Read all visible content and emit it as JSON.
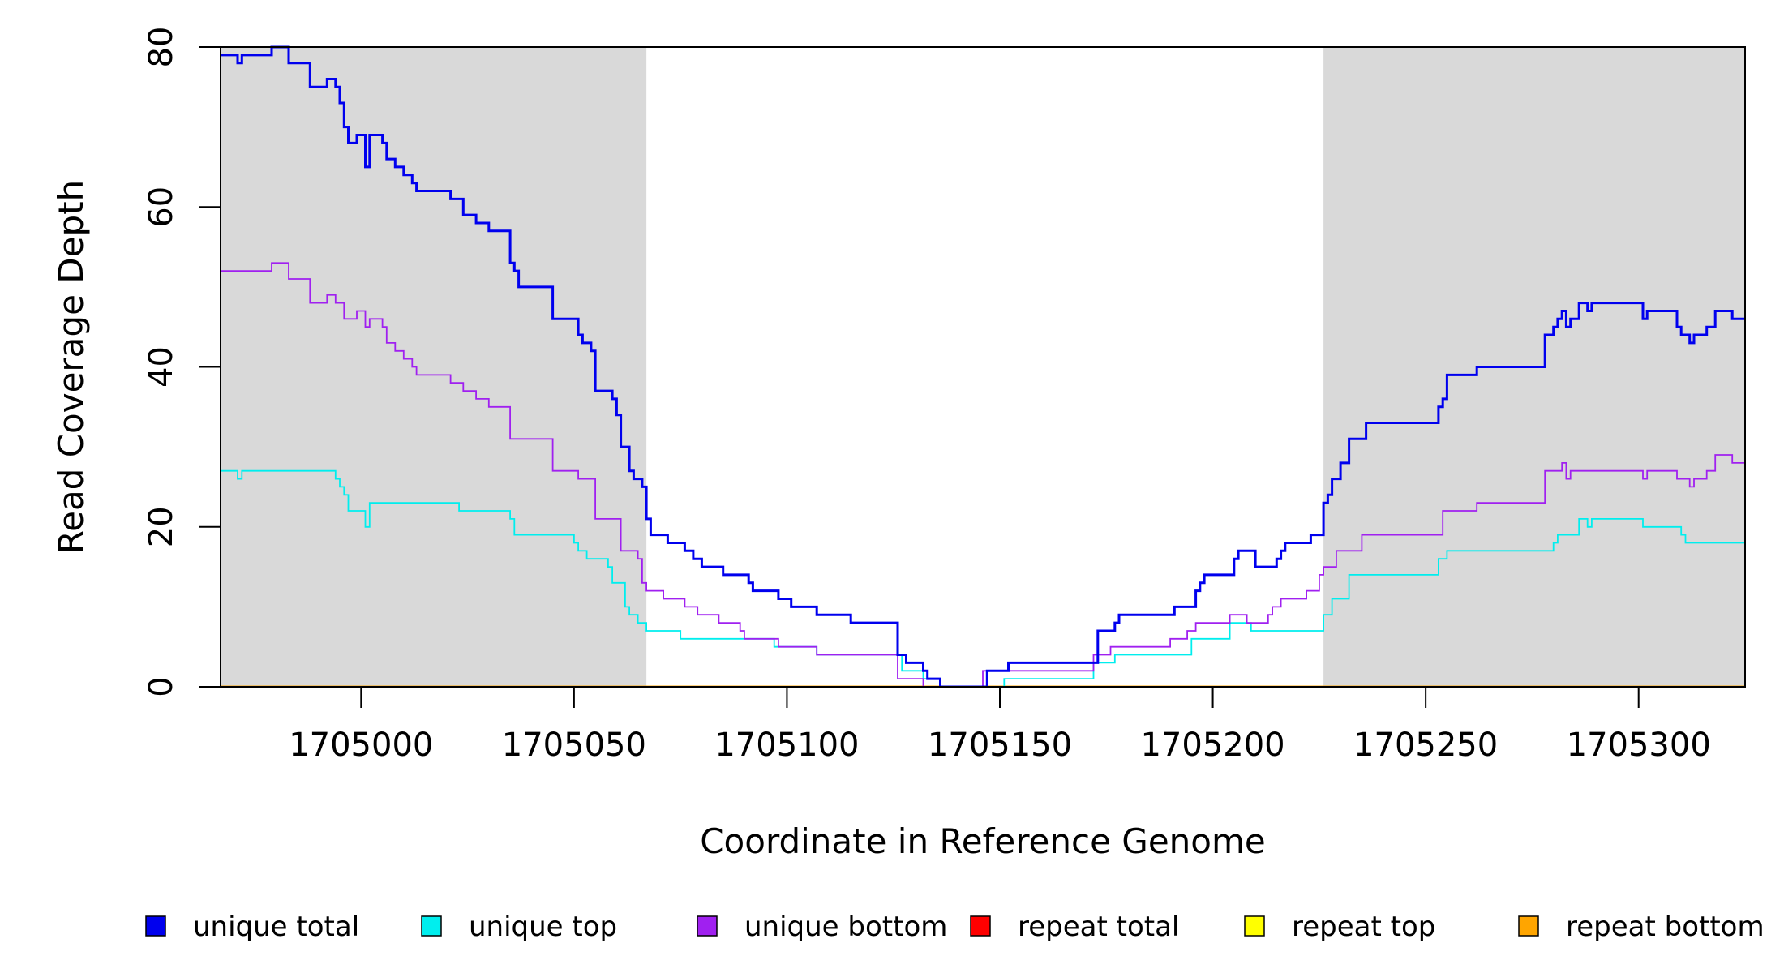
{
  "chart_data": {
    "type": "line",
    "title": "",
    "xlabel": "Coordinate in Reference Genome",
    "ylabel": "Read Coverage Depth",
    "xlim": [
      1704967,
      1705325
    ],
    "ylim": [
      0,
      80
    ],
    "x_ticks": [
      {
        "value": 1705000,
        "label": "1705000"
      },
      {
        "value": 1705050,
        "label": "1705050"
      },
      {
        "value": 1705100,
        "label": "1705100"
      },
      {
        "value": 1705150,
        "label": "1705150"
      },
      {
        "value": 1705200,
        "label": "1705200"
      },
      {
        "value": 1705250,
        "label": "1705250"
      },
      {
        "value": 1705300,
        "label": "1705300"
      }
    ],
    "y_ticks": [
      {
        "value": 0,
        "label": "0"
      },
      {
        "value": 20,
        "label": "20"
      },
      {
        "value": 40,
        "label": "40"
      },
      {
        "value": 60,
        "label": "60"
      },
      {
        "value": 80,
        "label": "80"
      }
    ],
    "shaded_regions": [
      {
        "x0": 1704967,
        "x1": 1705067,
        "color": "#d9d9d9"
      },
      {
        "x0": 1705226,
        "x1": 1705325,
        "color": "#d9d9d9"
      }
    ],
    "legend_position": "bottom",
    "series": [
      {
        "name": "unique total",
        "color": "#0000ee",
        "step": true,
        "points": [
          [
            1704967,
            79
          ],
          [
            1704971,
            78
          ],
          [
            1704972,
            79
          ],
          [
            1704979,
            80
          ],
          [
            1704983,
            78
          ],
          [
            1704988,
            75
          ],
          [
            1704992,
            76
          ],
          [
            1704994,
            75
          ],
          [
            1704995,
            73
          ],
          [
            1704996,
            70
          ],
          [
            1704997,
            68
          ],
          [
            1704999,
            69
          ],
          [
            1705001,
            65
          ],
          [
            1705002,
            69
          ],
          [
            1705005,
            68
          ],
          [
            1705006,
            66
          ],
          [
            1705008,
            65
          ],
          [
            1705010,
            64
          ],
          [
            1705012,
            63
          ],
          [
            1705013,
            62
          ],
          [
            1705021,
            61
          ],
          [
            1705024,
            59
          ],
          [
            1705027,
            58
          ],
          [
            1705030,
            57
          ],
          [
            1705035,
            53
          ],
          [
            1705036,
            52
          ],
          [
            1705037,
            50
          ],
          [
            1705045,
            46
          ],
          [
            1705051,
            44
          ],
          [
            1705052,
            43
          ],
          [
            1705054,
            42
          ],
          [
            1705055,
            37
          ],
          [
            1705059,
            36
          ],
          [
            1705060,
            34
          ],
          [
            1705061,
            30
          ],
          [
            1705063,
            27
          ],
          [
            1705064,
            26
          ],
          [
            1705066,
            25
          ],
          [
            1705067,
            21
          ],
          [
            1705068,
            19
          ],
          [
            1705072,
            18
          ],
          [
            1705076,
            17
          ],
          [
            1705078,
            16
          ],
          [
            1705080,
            15
          ],
          [
            1705085,
            14
          ],
          [
            1705091,
            13
          ],
          [
            1705092,
            12
          ],
          [
            1705098,
            11
          ],
          [
            1705101,
            10
          ],
          [
            1705107,
            9
          ],
          [
            1705115,
            8
          ],
          [
            1705126,
            4
          ],
          [
            1705128,
            3
          ],
          [
            1705132,
            2
          ],
          [
            1705133,
            1
          ],
          [
            1705136,
            0
          ],
          [
            1705147,
            2
          ],
          [
            1705152,
            3
          ],
          [
            1705173,
            7
          ],
          [
            1705177,
            8
          ],
          [
            1705178,
            9
          ],
          [
            1705191,
            10
          ],
          [
            1705196,
            12
          ],
          [
            1705197,
            13
          ],
          [
            1705198,
            14
          ],
          [
            1705205,
            16
          ],
          [
            1705206,
            17
          ],
          [
            1705210,
            15
          ],
          [
            1705215,
            16
          ],
          [
            1705216,
            17
          ],
          [
            1705217,
            18
          ],
          [
            1705223,
            19
          ],
          [
            1705226,
            23
          ],
          [
            1705227,
            24
          ],
          [
            1705228,
            26
          ],
          [
            1705230,
            28
          ],
          [
            1705232,
            31
          ],
          [
            1705236,
            33
          ],
          [
            1705253,
            35
          ],
          [
            1705254,
            36
          ],
          [
            1705255,
            39
          ],
          [
            1705262,
            40
          ],
          [
            1705278,
            44
          ],
          [
            1705280,
            45
          ],
          [
            1705281,
            46
          ],
          [
            1705282,
            47
          ],
          [
            1705283,
            45
          ],
          [
            1705284,
            46
          ],
          [
            1705286,
            48
          ],
          [
            1705288,
            47
          ],
          [
            1705289,
            48
          ],
          [
            1705301,
            46
          ],
          [
            1705302,
            47
          ],
          [
            1705309,
            45
          ],
          [
            1705310,
            44
          ],
          [
            1705312,
            43
          ],
          [
            1705313,
            44
          ],
          [
            1705316,
            45
          ],
          [
            1705318,
            47
          ],
          [
            1705322,
            46
          ],
          [
            1705325,
            46
          ]
        ]
      },
      {
        "name": "unique top",
        "color": "#00eeee",
        "step": true,
        "points": [
          [
            1704967,
            27
          ],
          [
            1704971,
            26
          ],
          [
            1704972,
            27
          ],
          [
            1704994,
            26
          ],
          [
            1704995,
            25
          ],
          [
            1704996,
            24
          ],
          [
            1704997,
            22
          ],
          [
            1705001,
            20
          ],
          [
            1705002,
            23
          ],
          [
            1705023,
            22
          ],
          [
            1705035,
            21
          ],
          [
            1705036,
            19
          ],
          [
            1705050,
            18
          ],
          [
            1705051,
            17
          ],
          [
            1705053,
            16
          ],
          [
            1705058,
            15
          ],
          [
            1705059,
            13
          ],
          [
            1705062,
            10
          ],
          [
            1705063,
            9
          ],
          [
            1705065,
            8
          ],
          [
            1705067,
            7
          ],
          [
            1705075,
            6
          ],
          [
            1705097,
            5
          ],
          [
            1705100,
            5
          ],
          [
            1705107,
            4
          ],
          [
            1705122,
            4
          ],
          [
            1705127,
            2
          ],
          [
            1705132,
            1
          ],
          [
            1705136,
            0
          ],
          [
            1705151,
            1
          ],
          [
            1705172,
            3
          ],
          [
            1705177,
            4
          ],
          [
            1705195,
            6
          ],
          [
            1705204,
            8
          ],
          [
            1705209,
            7
          ],
          [
            1705226,
            9
          ],
          [
            1705228,
            11
          ],
          [
            1705232,
            14
          ],
          [
            1705253,
            16
          ],
          [
            1705255,
            17
          ],
          [
            1705280,
            18
          ],
          [
            1705281,
            19
          ],
          [
            1705286,
            21
          ],
          [
            1705288,
            20
          ],
          [
            1705289,
            21
          ],
          [
            1705301,
            20
          ],
          [
            1705310,
            19
          ],
          [
            1705311,
            18
          ],
          [
            1705325,
            18
          ]
        ]
      },
      {
        "name": "unique bottom",
        "color": "#a020f0",
        "step": true,
        "points": [
          [
            1704967,
            52
          ],
          [
            1704979,
            53
          ],
          [
            1704983,
            51
          ],
          [
            1704988,
            48
          ],
          [
            1704992,
            49
          ],
          [
            1704994,
            48
          ],
          [
            1704996,
            46
          ],
          [
            1704999,
            47
          ],
          [
            1705001,
            45
          ],
          [
            1705002,
            46
          ],
          [
            1705005,
            45
          ],
          [
            1705006,
            43
          ],
          [
            1705008,
            42
          ],
          [
            1705010,
            41
          ],
          [
            1705012,
            40
          ],
          [
            1705013,
            39
          ],
          [
            1705021,
            38
          ],
          [
            1705024,
            37
          ],
          [
            1705027,
            36
          ],
          [
            1705030,
            35
          ],
          [
            1705035,
            31
          ],
          [
            1705045,
            27
          ],
          [
            1705051,
            26
          ],
          [
            1705055,
            21
          ],
          [
            1705061,
            17
          ],
          [
            1705065,
            16
          ],
          [
            1705066,
            13
          ],
          [
            1705067,
            12
          ],
          [
            1705071,
            11
          ],
          [
            1705076,
            10
          ],
          [
            1705079,
            9
          ],
          [
            1705084,
            8
          ],
          [
            1705089,
            7
          ],
          [
            1705090,
            6
          ],
          [
            1705098,
            5
          ],
          [
            1705107,
            4
          ],
          [
            1705126,
            1
          ],
          [
            1705132,
            0
          ],
          [
            1705146,
            2
          ],
          [
            1705172,
            4
          ],
          [
            1705176,
            5
          ],
          [
            1705190,
            6
          ],
          [
            1705194,
            7
          ],
          [
            1705196,
            8
          ],
          [
            1705204,
            9
          ],
          [
            1705208,
            8
          ],
          [
            1705213,
            9
          ],
          [
            1705214,
            10
          ],
          [
            1705216,
            11
          ],
          [
            1705222,
            12
          ],
          [
            1705225,
            14
          ],
          [
            1705226,
            15
          ],
          [
            1705229,
            17
          ],
          [
            1705235,
            19
          ],
          [
            1705254,
            22
          ],
          [
            1705262,
            23
          ],
          [
            1705278,
            27
          ],
          [
            1705282,
            28
          ],
          [
            1705283,
            26
          ],
          [
            1705284,
            27
          ],
          [
            1705301,
            26
          ],
          [
            1705302,
            27
          ],
          [
            1705309,
            26
          ],
          [
            1705312,
            25
          ],
          [
            1705313,
            26
          ],
          [
            1705316,
            27
          ],
          [
            1705318,
            29
          ],
          [
            1705322,
            28
          ],
          [
            1705325,
            28
          ]
        ]
      },
      {
        "name": "repeat total",
        "color": "#ff0000",
        "step": true,
        "points": [
          [
            1704967,
            0
          ],
          [
            1705325,
            0
          ]
        ]
      },
      {
        "name": "repeat top",
        "color": "#ffff00",
        "step": true,
        "points": [
          [
            1704967,
            0
          ],
          [
            1705325,
            0
          ]
        ]
      },
      {
        "name": "repeat bottom",
        "color": "#ffa500",
        "step": true,
        "points": [
          [
            1704967,
            0
          ],
          [
            1705325,
            0
          ]
        ]
      }
    ]
  }
}
